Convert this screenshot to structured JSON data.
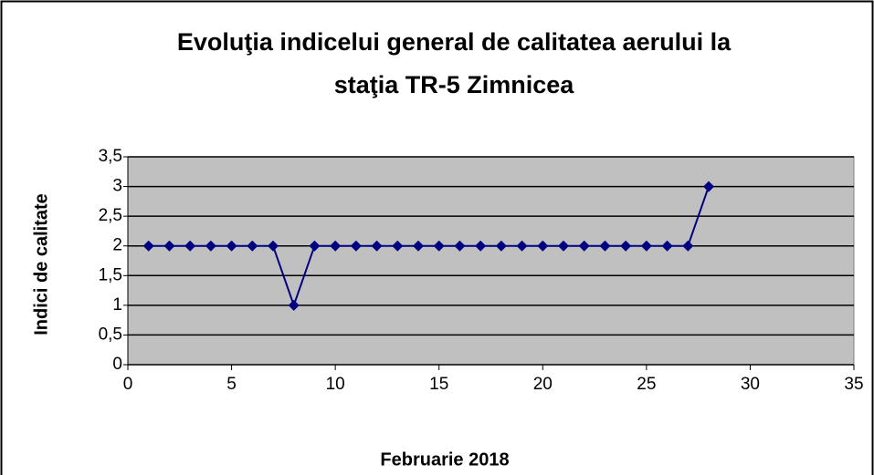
{
  "chart_data": {
    "type": "line",
    "title": [
      "Evoluţia indicelui general de calitatea aerului la",
      "staţia TR-5 Zimnicea"
    ],
    "x_label": "Februarie 2018",
    "y_label": "Indici de calitate",
    "series": [
      {
        "color": "#000080",
        "x": [
          1,
          2,
          3,
          4,
          5,
          6,
          7,
          8,
          9,
          10,
          11,
          12,
          13,
          14,
          15,
          16,
          17,
          18,
          19,
          20,
          21,
          22,
          23,
          24,
          25,
          26,
          27,
          28
        ],
        "values": [
          2,
          2,
          2,
          2,
          2,
          2,
          2,
          1,
          2,
          2,
          2,
          2,
          2,
          2,
          2,
          2,
          2,
          2,
          2,
          2,
          2,
          2,
          2,
          2,
          2,
          2,
          2,
          3
        ]
      }
    ],
    "xlim": [
      0,
      35
    ],
    "xticks": [
      0,
      5,
      10,
      15,
      20,
      25,
      30,
      35
    ],
    "ylim": [
      0,
      3.5
    ],
    "yticks": [
      0,
      {
        "value": 0.5,
        "label": "0,5"
      },
      1,
      {
        "value": 1.5,
        "label": "1,5"
      },
      2,
      {
        "value": 2.5,
        "label": "2,5"
      },
      3,
      {
        "value": 3.5,
        "label": "3,5"
      }
    ],
    "grid": true,
    "plot_background": "#c0c0c0"
  }
}
